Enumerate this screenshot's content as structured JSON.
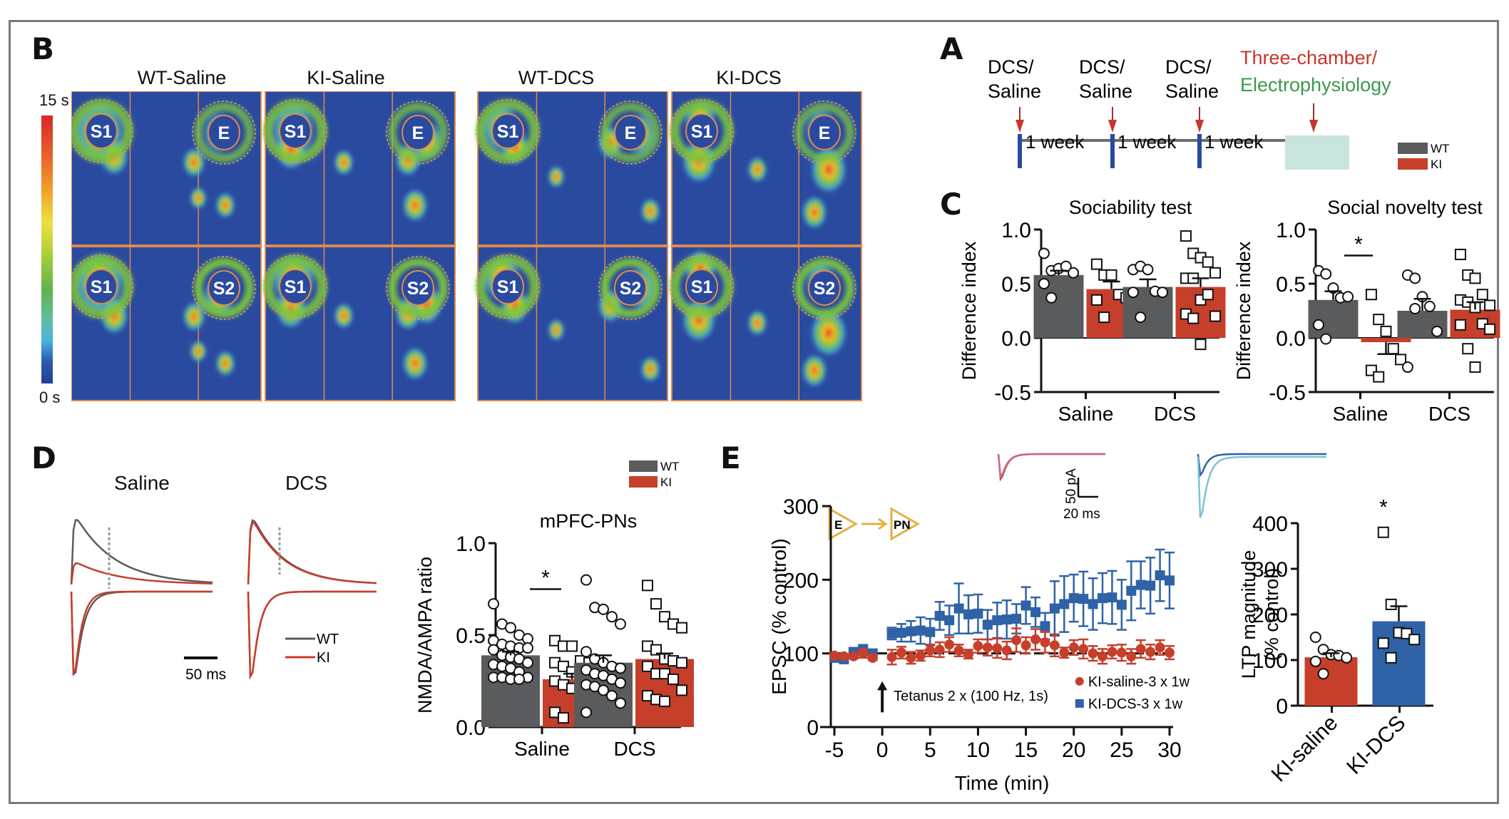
{
  "panels": {
    "A": {
      "label": "A",
      "injections": [
        {
          "line1": "DCS/",
          "line2": "Saline"
        },
        {
          "line1": "DCS/",
          "line2": "Saline"
        },
        {
          "line1": "DCS/",
          "line2": "Saline"
        }
      ],
      "intervals": [
        "1 week",
        "1 week",
        "1 week"
      ],
      "test_line1": "Three-chamber/",
      "test_line2": "Electrophysiology",
      "legend": [
        {
          "name": "WT",
          "color": "#5a5b5d"
        },
        {
          "name": "KI",
          "color": "#c63f2b"
        }
      ]
    },
    "B": {
      "label": "B",
      "colorbar_max": "15 s",
      "colorbar_min": "0 s",
      "groups": [
        "WT-Saline",
        "KI-Saline",
        "WT-DCS",
        "KI-DCS"
      ],
      "row1_labels": [
        "S1",
        "E"
      ],
      "row2_labels": [
        "S1",
        "S2"
      ]
    },
    "C": {
      "label": "C"
    },
    "D": {
      "label": "D",
      "trace_titles": [
        "Saline",
        "DCS"
      ],
      "scale_bar": "50 ms",
      "trace_legend": [
        "WT",
        "KI"
      ],
      "legend": [
        {
          "name": "WT",
          "color": "#5a5b5d"
        },
        {
          "name": "KI",
          "color": "#c63f2b"
        }
      ]
    },
    "E": {
      "label": "E",
      "scale_y": "50 pA",
      "scale_x": "20 ms",
      "circuit_from": "E",
      "circuit_to": "PN",
      "tetanus": "Tetanus  2 x (100 Hz, 1s)"
    }
  },
  "colors": {
    "wt": "#5a5b5d",
    "ki": "#c63f2b",
    "dcs_blue": "#2f62a6",
    "light_blue": "#7cc4d4",
    "timeline_blue": "#2a4aa0",
    "timeline_box": "#c9e3df",
    "red_text": "#c8352b",
    "green_text": "#3a9a4a"
  },
  "chart_data": [
    {
      "id": "sociability",
      "type": "bar",
      "title": "Sociability test",
      "ylabel": "Difference index",
      "categories": [
        "Saline",
        "DCS"
      ],
      "ylim": [
        -0.5,
        1.0
      ],
      "yticks": [
        "1.0",
        "0.5",
        "0.0",
        "-0.5"
      ],
      "series": [
        {
          "name": "WT",
          "values": [
            0.58,
            0.47
          ],
          "sem": [
            0.04,
            0.07
          ],
          "points": [
            [
              0.78,
              0.62,
              0.64,
              0.66,
              0.6,
              0.5,
              0.37
            ],
            [
              0.63,
              0.66,
              0.63,
              0.43,
              0.42,
              0.42,
              0.19
            ]
          ]
        },
        {
          "name": "KI",
          "values": [
            0.45,
            0.47
          ],
          "sem": [
            0.07,
            0.08
          ],
          "points": [
            [
              0.68,
              0.58,
              0.58,
              0.4,
              0.37,
              0.35,
              0.19
            ],
            [
              0.94,
              0.78,
              0.74,
              0.7,
              0.6,
              0.55,
              0.55,
              0.35,
              0.4,
              0.2,
              0.22,
              0.18,
              -0.06
            ]
          ]
        }
      ],
      "annotations": []
    },
    {
      "id": "social-novelty",
      "type": "bar",
      "title": "Social novelty test",
      "ylabel": "Difference index",
      "categories": [
        "Saline",
        "DCS"
      ],
      "ylim": [
        -0.5,
        1.0
      ],
      "yticks": [
        "1.0",
        "0.5",
        "0.0",
        "-0.5"
      ],
      "series": [
        {
          "name": "WT",
          "values": [
            0.35,
            0.25
          ],
          "sem": [
            0.08,
            0.11
          ],
          "points": [
            [
              0.62,
              0.59,
              0.46,
              0.37,
              0.38,
              0.12,
              -0.01
            ],
            [
              0.58,
              0.55,
              0.38,
              0.29,
              0.06,
              -0.27,
              0.27
            ]
          ]
        },
        {
          "name": "KI",
          "values": [
            -0.04,
            0.26
          ],
          "sem": [
            0.11,
            0.07
          ],
          "points": [
            [
              0.4,
              0.17,
              0.06,
              -0.1,
              -0.2,
              -0.3,
              -0.36
            ],
            [
              0.77,
              0.58,
              0.55,
              0.4,
              0.3,
              0.35,
              0.33,
              0.28,
              0.13,
              0.08,
              0.12,
              -0.1,
              -0.27
            ]
          ]
        }
      ],
      "annotations": [
        {
          "text": "*",
          "between": "Saline WT vs KI"
        }
      ]
    },
    {
      "id": "nmda-ampa",
      "type": "bar",
      "title": "mPFC-PNs",
      "ylabel": "NMDA/AMPA ratio",
      "categories": [
        "Saline",
        "DCS"
      ],
      "ylim": [
        0,
        1.0
      ],
      "yticks": [
        "1.0",
        "0.5",
        "0.0"
      ],
      "series": [
        {
          "name": "WT",
          "values": [
            0.39,
            0.35
          ],
          "sem": [
            0.02,
            0.04
          ],
          "points": [
            [
              0.67,
              0.56,
              0.54,
              0.5,
              0.48,
              0.47,
              0.45,
              0.44,
              0.43,
              0.43,
              0.42,
              0.39,
              0.38,
              0.37,
              0.35,
              0.34,
              0.33,
              0.32,
              0.3,
              0.27,
              0.27,
              0.27,
              0.26,
              0.26
            ],
            [
              0.8,
              0.65,
              0.64,
              0.6,
              0.56,
              0.41,
              0.37,
              0.35,
              0.33,
              0.32,
              0.31,
              0.29,
              0.28,
              0.26,
              0.24,
              0.23,
              0.22,
              0.2,
              0.17,
              0.13,
              0.08
            ]
          ]
        },
        {
          "name": "KI",
          "values": [
            0.26,
            0.37
          ],
          "sem": [
            0.03,
            0.03
          ],
          "points": [
            [
              0.47,
              0.44,
              0.44,
              0.36,
              0.35,
              0.35,
              0.33,
              0.3,
              0.27,
              0.27,
              0.25,
              0.23,
              0.21,
              0.2,
              0.2,
              0.08,
              0.05
            ],
            [
              0.77,
              0.67,
              0.6,
              0.56,
              0.54,
              0.44,
              0.42,
              0.37,
              0.36,
              0.35,
              0.33,
              0.29,
              0.29,
              0.26,
              0.2,
              0.17,
              0.15,
              0.14
            ]
          ]
        }
      ],
      "annotations": [
        {
          "text": "*",
          "between": "Saline WT vs KI"
        }
      ]
    },
    {
      "id": "ltp-timecourse",
      "type": "scatter",
      "title": "",
      "xlabel": "Time (min)",
      "ylabel": "EPSC (% control)",
      "xlim": [
        -5,
        30
      ],
      "ylim": [
        0,
        300
      ],
      "xticks": [
        "-5",
        "0",
        "5",
        "10",
        "15",
        "20",
        "25",
        "30"
      ],
      "yticks": [
        "300",
        "200",
        "100",
        "0"
      ],
      "baseline": 100,
      "series": [
        {
          "name": "KI-saline-3 x 1w",
          "marker": "circle",
          "color": "#c63f2b",
          "x": [
            -5,
            -4,
            -3,
            -2,
            -1,
            1,
            2,
            3,
            4,
            5,
            6,
            7,
            8,
            9,
            10,
            11,
            12,
            13,
            14,
            15,
            16,
            17,
            18,
            19,
            20,
            21,
            22,
            23,
            24,
            25,
            26,
            27,
            28,
            29,
            30
          ],
          "y": [
            97,
            96,
            96,
            100,
            94,
            95,
            101,
            94,
            97,
            104,
            105,
            112,
            104,
            99,
            110,
            108,
            107,
            104,
            118,
            111,
            119,
            115,
            111,
            101,
            108,
            106,
            100,
            96,
            102,
            101,
            96,
            106,
            102,
            108,
            101
          ],
          "err": [
            3,
            3,
            3,
            6,
            3,
            10,
            8,
            8,
            7,
            8,
            10,
            10,
            8,
            6,
            9,
            11,
            13,
            12,
            16,
            11,
            14,
            14,
            15,
            7,
            10,
            13,
            10,
            10,
            9,
            11,
            10,
            12,
            10,
            10,
            9
          ]
        },
        {
          "name": "KI-DCS-3 x 1w",
          "marker": "square",
          "color": "#2f62a6",
          "x": [
            -5,
            -4,
            -3,
            -2,
            -1,
            1,
            2,
            3,
            4,
            5,
            6,
            7,
            8,
            9,
            10,
            11,
            12,
            13,
            14,
            15,
            16,
            17,
            18,
            19,
            20,
            21,
            22,
            23,
            24,
            25,
            26,
            27,
            28,
            29,
            30
          ],
          "y": [
            94,
            92,
            102,
            106,
            100,
            127,
            128,
            130,
            131,
            129,
            151,
            145,
            161,
            153,
            154,
            139,
            145,
            146,
            147,
            165,
            156,
            137,
            161,
            167,
            175,
            174,
            167,
            175,
            176,
            166,
            185,
            193,
            192,
            206,
            199
          ],
          "err": [
            3,
            3,
            3,
            4,
            3,
            8,
            12,
            14,
            18,
            18,
            19,
            20,
            34,
            26,
            26,
            20,
            24,
            26,
            20,
            25,
            20,
            18,
            37,
            38,
            32,
            37,
            35,
            34,
            36,
            34,
            40,
            32,
            38,
            35,
            38
          ]
        }
      ]
    },
    {
      "id": "ltp-magnitude",
      "type": "bar",
      "title": "",
      "ylabel": "LTP magnitude (% control)",
      "categories": [
        "KI-saline",
        "KI-DCS"
      ],
      "ylim": [
        0,
        400
      ],
      "yticks": [
        "400",
        "300",
        "200",
        "100",
        "0"
      ],
      "series": [
        {
          "name": "LTP",
          "values": [
            106,
            185
          ],
          "sem": [
            9,
            33
          ],
          "colors": [
            "#c63f2b",
            "#2f62a6"
          ],
          "points": [
            [
              150,
              123,
              112,
              110,
              105,
              97,
              70
            ],
            [
              380,
              222,
              160,
              158,
              145,
              137,
              105
            ]
          ]
        }
      ],
      "annotations": [
        {
          "text": "*",
          "over": "KI-DCS"
        }
      ]
    }
  ]
}
